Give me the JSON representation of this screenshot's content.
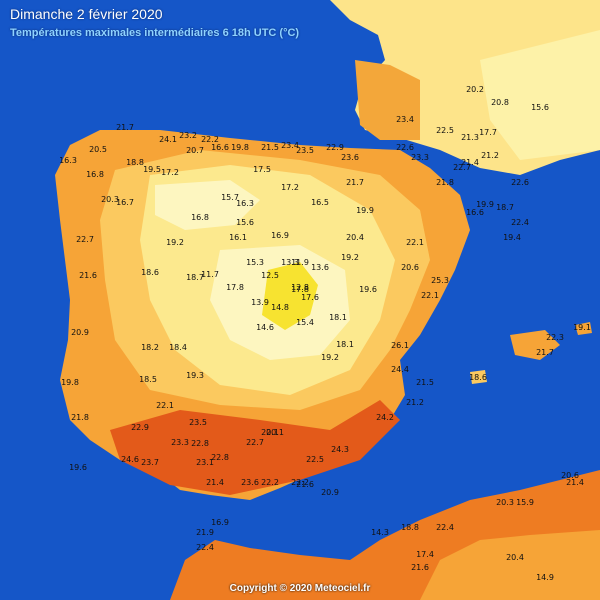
{
  "header": {
    "title": "Dimanche 2 février 2020",
    "subtitle": "Températures maximales intermédiaires 6 18h UTC (°C)"
  },
  "footer": {
    "copyright": "Copyright © 2020 Meteociel.fr"
  },
  "colors": {
    "sea": "#1556c8",
    "band_14_16": "#fdf6c0",
    "band_16_18": "#fce98e",
    "band_18_20": "#fbc95f",
    "band_20_22": "#f6a437",
    "band_22_24": "#ee7c22",
    "band_24_plus": "#e35a1a",
    "band_12_14": "#f7e330"
  },
  "temperature_labels": [
    "23.2",
    "24.1",
    "22.2",
    "20.7",
    "19.8",
    "21.5",
    "23.4",
    "23.5",
    "22.9",
    "23.6",
    "21.7",
    "20.5",
    "16.3",
    "18.8",
    "16.8",
    "19.5",
    "20.3",
    "22.7",
    "21.6",
    "20.9",
    "21.8",
    "19.8",
    "19.6",
    "16.7",
    "17.2",
    "16.6",
    "17.5",
    "17.2",
    "15.7",
    "16.5",
    "16.3",
    "16.8",
    "15.6",
    "16.1",
    "16.9",
    "19.2",
    "18.6",
    "18.7",
    "15.3",
    "13.3",
    "12.8",
    "13.6",
    "11.7",
    "17.8",
    "13.9",
    "15.4",
    "18.1",
    "14.6",
    "19.2",
    "18.2",
    "18.4",
    "18.5",
    "19.3",
    "20.4",
    "22.1",
    "19.6",
    "18.1",
    "22.1",
    "22.9",
    "23.5",
    "22.8",
    "22.7",
    "20.1",
    "23.1",
    "21.4",
    "22.5",
    "22.2",
    "23.6",
    "22.2",
    "21.6",
    "23.3",
    "22.6",
    "22.7",
    "21.8",
    "19.9",
    "21.7",
    "20.2",
    "23.4",
    "26.1",
    "24.4",
    "21.5",
    "25.3",
    "22.1",
    "20.6",
    "18.6",
    "24.2",
    "21.2",
    "22.5",
    "17.7",
    "18.7",
    "19.4",
    "15.6",
    "16.6",
    "11.9",
    "12.5",
    "17.8",
    "14.8",
    "17.6",
    "19.2",
    "20.1",
    "21.3",
    "21.4",
    "21.2",
    "22.6",
    "20.8",
    "19.9",
    "22.4",
    "18.8",
    "22.4",
    "21.6",
    "17.4",
    "14.3",
    "20.4",
    "14.9",
    "20.3",
    "15.9",
    "20.6",
    "21.4",
    "19.1",
    "21.7",
    "22.3",
    "24.6",
    "23.3",
    "24.3",
    "23.7",
    "22.8",
    "20.9",
    "21.9",
    "22.4",
    "16.9"
  ]
}
